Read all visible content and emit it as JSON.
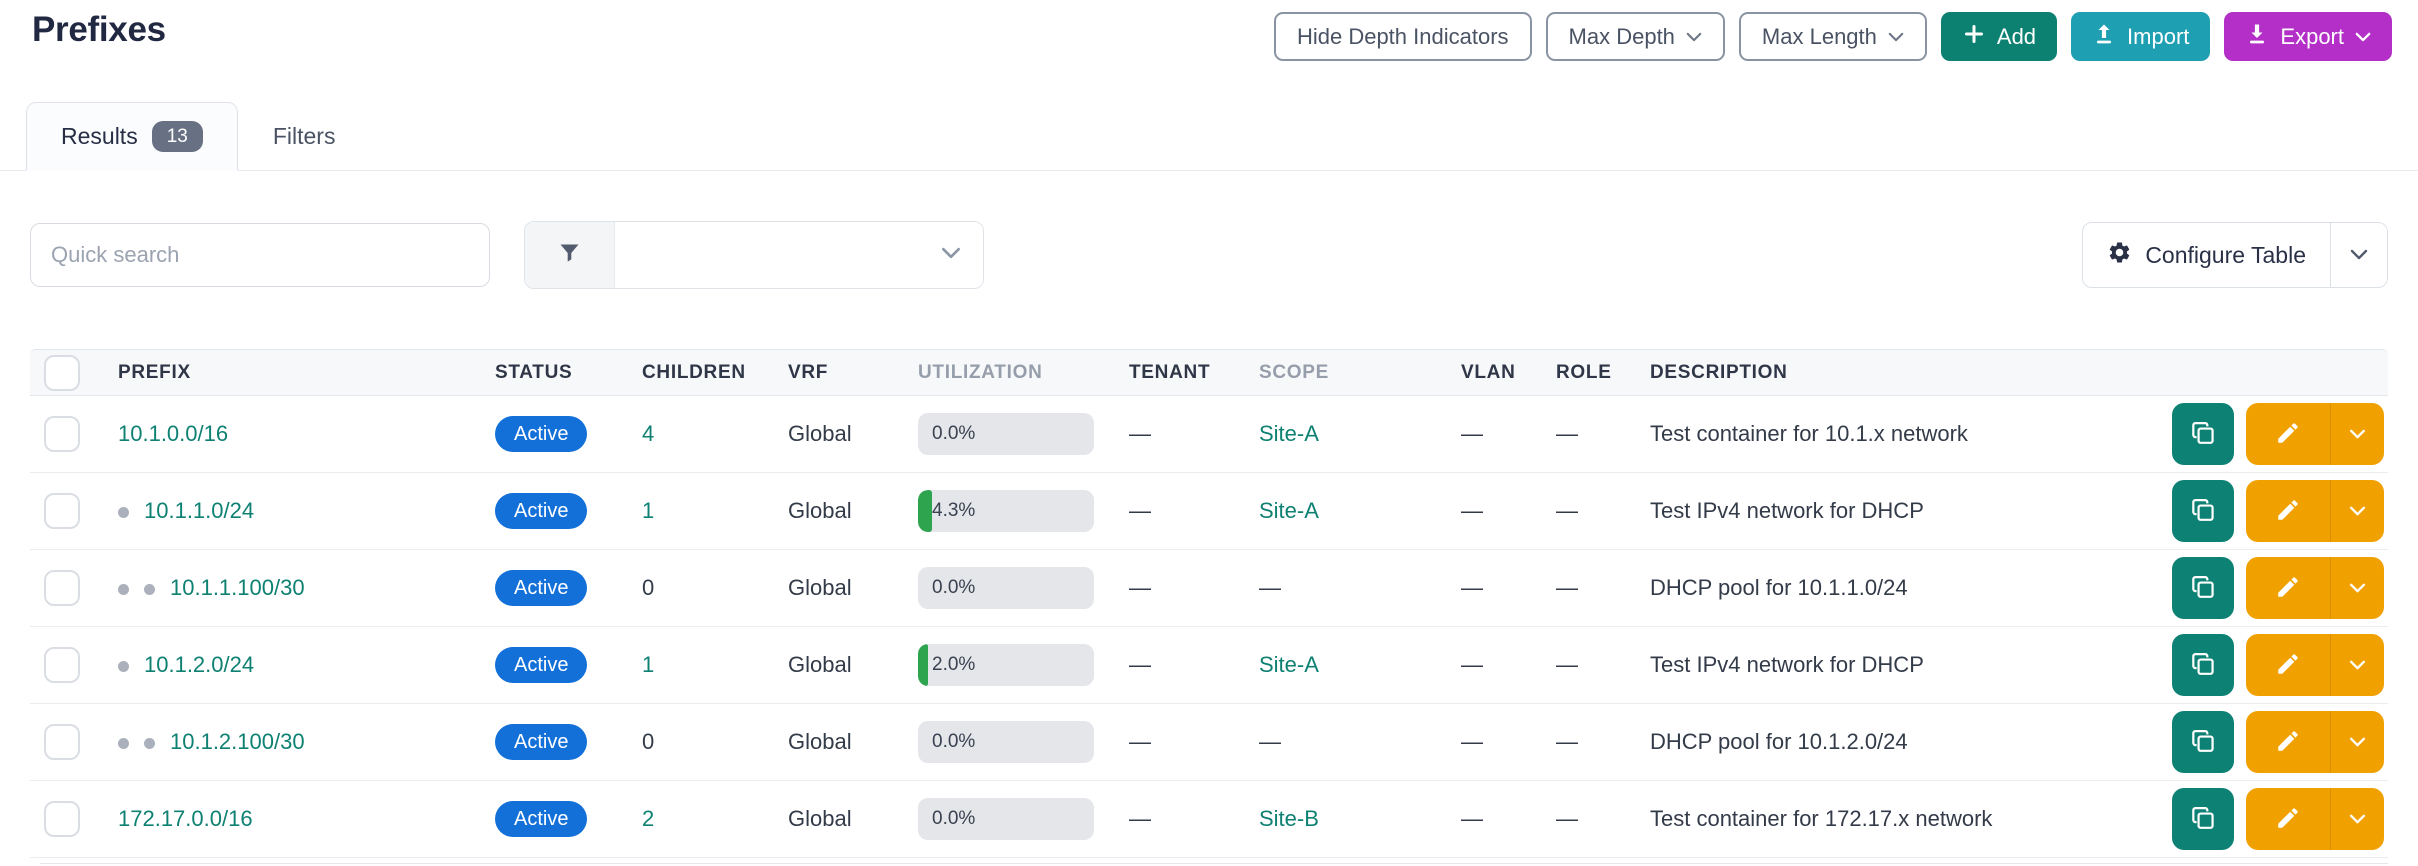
{
  "page": {
    "title": "Prefixes"
  },
  "header": {
    "hide_depth_button": "Hide Depth Indicators",
    "max_depth_button": "Max Depth",
    "max_length_button": "Max Length",
    "add_button": "Add",
    "import_button": "Import",
    "export_button": "Export"
  },
  "tabs": {
    "results_label": "Results",
    "results_count": "13",
    "filters_label": "Filters"
  },
  "toolbar": {
    "search_placeholder": "Quick search",
    "configure_table_label": "Configure Table"
  },
  "table": {
    "columns": [
      {
        "key": "prefix",
        "label": "PREFIX",
        "muted": false
      },
      {
        "key": "status",
        "label": "STATUS",
        "muted": false
      },
      {
        "key": "children",
        "label": "CHILDREN",
        "muted": false
      },
      {
        "key": "vrf",
        "label": "VRF",
        "muted": false
      },
      {
        "key": "utilization",
        "label": "UTILIZATION",
        "muted": true
      },
      {
        "key": "tenant",
        "label": "TENANT",
        "muted": false
      },
      {
        "key": "scope",
        "label": "SCOPE",
        "muted": true
      },
      {
        "key": "vlan",
        "label": "VLAN",
        "muted": false
      },
      {
        "key": "role",
        "label": "ROLE",
        "muted": false
      },
      {
        "key": "description",
        "label": "DESCRIPTION",
        "muted": false
      }
    ],
    "rows": [
      {
        "prefix": "10.1.0.0/16",
        "depth": 0,
        "status": "Active",
        "children": "4",
        "children_is_link": true,
        "vrf": "Global",
        "utilization_pct": 0.0,
        "utilization_label": "0.0%",
        "tenant": "—",
        "scope": "Site-A",
        "scope_is_link": true,
        "vlan": "—",
        "role": "—",
        "description": "Test container for 10.1.x network"
      },
      {
        "prefix": "10.1.1.0/24",
        "depth": 1,
        "status": "Active",
        "children": "1",
        "children_is_link": true,
        "vrf": "Global",
        "utilization_pct": 4.3,
        "utilization_label": "4.3%",
        "tenant": "—",
        "scope": "Site-A",
        "scope_is_link": true,
        "vlan": "—",
        "role": "—",
        "description": "Test IPv4 network for DHCP"
      },
      {
        "prefix": "10.1.1.100/30",
        "depth": 2,
        "status": "Active",
        "children": "0",
        "children_is_link": false,
        "vrf": "Global",
        "utilization_pct": 0.0,
        "utilization_label": "0.0%",
        "tenant": "—",
        "scope": "—",
        "scope_is_link": false,
        "vlan": "—",
        "role": "—",
        "description": "DHCP pool for 10.1.1.0/24"
      },
      {
        "prefix": "10.1.2.0/24",
        "depth": 1,
        "status": "Active",
        "children": "1",
        "children_is_link": true,
        "vrf": "Global",
        "utilization_pct": 2.0,
        "utilization_label": "2.0%",
        "tenant": "—",
        "scope": "Site-A",
        "scope_is_link": true,
        "vlan": "—",
        "role": "—",
        "description": "Test IPv4 network for DHCP"
      },
      {
        "prefix": "10.1.2.100/30",
        "depth": 2,
        "status": "Active",
        "children": "0",
        "children_is_link": false,
        "vrf": "Global",
        "utilization_pct": 0.0,
        "utilization_label": "0.0%",
        "tenant": "—",
        "scope": "—",
        "scope_is_link": false,
        "vlan": "—",
        "role": "—",
        "description": "DHCP pool for 10.1.2.0/24"
      },
      {
        "prefix": "172.17.0.0/16",
        "depth": 0,
        "status": "Active",
        "children": "2",
        "children_is_link": true,
        "vrf": "Global",
        "utilization_pct": 0.0,
        "utilization_label": "0.0%",
        "tenant": "—",
        "scope": "Site-B",
        "scope_is_link": true,
        "vlan": "—",
        "role": "—",
        "description": "Test container for 172.17.x network"
      }
    ]
  },
  "colors": {
    "accent": "#0e8173",
    "status_blue": "#1270d8",
    "add_green": "#0c8071",
    "import_cyan": "#1f9fb2",
    "export_purple": "#b32fc8",
    "copy_teal": "#0d8173",
    "edit_orange": "#f0a100",
    "util_green": "#2ea44f",
    "count_gray": "#687083"
  }
}
